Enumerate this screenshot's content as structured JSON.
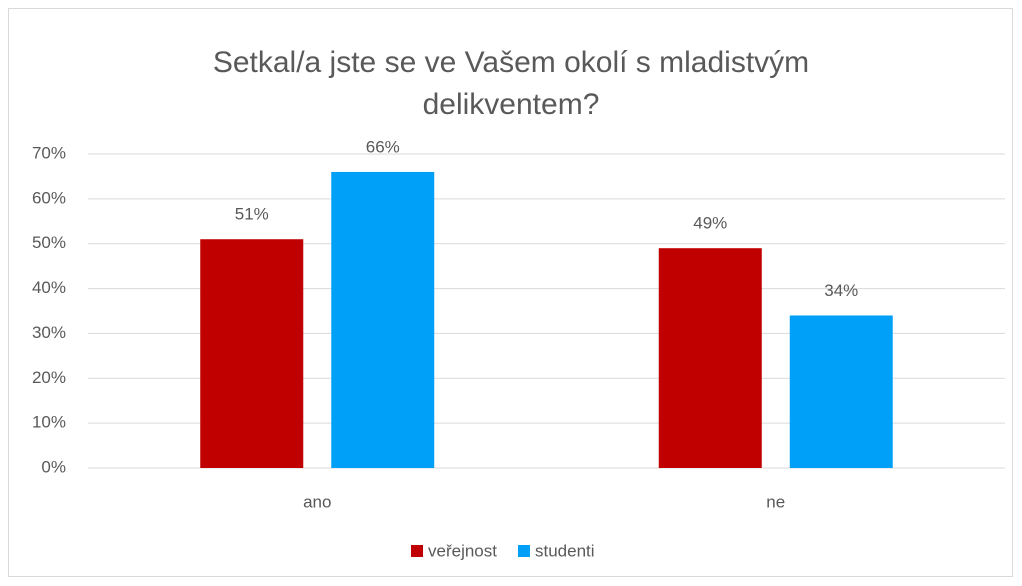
{
  "chart_data": {
    "type": "bar",
    "title": "Setkal/a jste se ve Vašem okolí s mladistvým delikventem?",
    "categories": [
      "ano",
      "ne"
    ],
    "series": [
      {
        "name": "veřejnost",
        "color": "#c00000",
        "values": [
          51,
          49
        ],
        "value_labels": [
          "51%",
          "49%"
        ]
      },
      {
        "name": "studenti",
        "color": "#00a0f8",
        "values": [
          66,
          34
        ],
        "value_labels": [
          "66%",
          "34%"
        ]
      }
    ],
    "ylim": [
      0,
      70
    ],
    "yticks": [
      {
        "value": 0,
        "label": "0%"
      },
      {
        "value": 10,
        "label": "10%"
      },
      {
        "value": 20,
        "label": "20%"
      },
      {
        "value": 30,
        "label": "30%"
      },
      {
        "value": 40,
        "label": "40%"
      },
      {
        "value": 50,
        "label": "50%"
      },
      {
        "value": 60,
        "label": "60%"
      },
      {
        "value": 70,
        "label": "70%"
      }
    ],
    "grid": true,
    "legend": "bottom"
  }
}
